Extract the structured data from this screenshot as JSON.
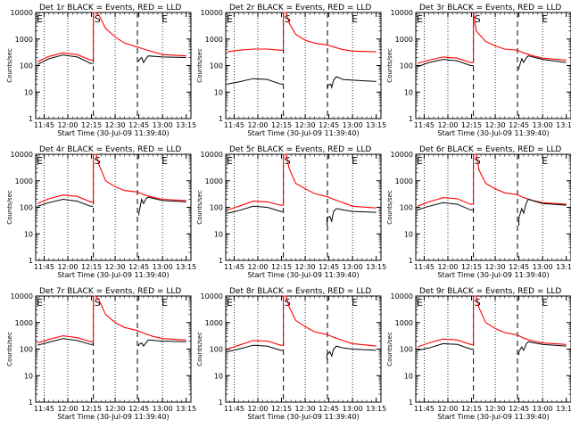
{
  "chart_data": {
    "type": "line",
    "x_ticks": [
      "11:45",
      "12:00",
      "12:15",
      "12:30",
      "12:45",
      "13:00",
      "13:15"
    ],
    "x_range_hours": [
      11.6611,
      13.3
    ],
    "xlabel": "Start Time (30-Jul-09 11:39:40)",
    "ylabel": "Counts/sec",
    "y_ticks": [
      "1",
      "10",
      "100",
      "1000",
      "10000"
    ],
    "ylim": [
      1,
      10000
    ],
    "y_scale": "log",
    "dotted_vlines_hours": [
      11.75,
      12.0,
      12.5,
      13.0
    ],
    "dashed_vlines_hours": [
      12.27,
      12.735
    ],
    "markers": [
      {
        "label": "E",
        "x_hours": 11.67
      },
      {
        "label": "S",
        "x_hours": 12.28
      },
      {
        "label": "E",
        "x_hours": 12.99
      }
    ],
    "colors": {
      "events": "#000000",
      "lld": "#ff0000"
    },
    "panels": [
      {
        "title": "Det 1r BLACK = Events, RED = LLD",
        "black": [
          [
            11.68,
            110
          ],
          [
            11.8,
            180
          ],
          [
            11.95,
            250
          ],
          [
            12.1,
            210
          ],
          [
            12.24,
            120
          ],
          [
            12.27,
            120
          ],
          [
            12.27,
            null
          ],
          [
            12.75,
            140
          ],
          [
            12.75,
            160
          ],
          [
            12.78,
            200
          ],
          [
            12.8,
            130
          ],
          [
            12.83,
            190
          ],
          [
            12.85,
            230
          ],
          [
            13.0,
            210
          ],
          [
            13.25,
            200
          ]
        ],
        "red": [
          [
            11.68,
            140
          ],
          [
            11.8,
            220
          ],
          [
            11.95,
            300
          ],
          [
            12.1,
            260
          ],
          [
            12.24,
            160
          ],
          [
            12.27,
            160
          ],
          [
            12.27,
            10000
          ],
          [
            12.3,
            10000
          ],
          [
            12.33,
            8000
          ],
          [
            12.4,
            2500
          ],
          [
            12.5,
            1200
          ],
          [
            12.6,
            700
          ],
          [
            12.735,
            500
          ],
          [
            12.8,
            420
          ],
          [
            12.9,
            330
          ],
          [
            13.0,
            260
          ],
          [
            13.25,
            230
          ]
        ]
      },
      {
        "title": "Det 2r BLACK = Events, RED = LLD",
        "black": [
          [
            11.68,
            20
          ],
          [
            11.8,
            24
          ],
          [
            11.95,
            32
          ],
          [
            12.1,
            30
          ],
          [
            12.24,
            20
          ],
          [
            12.27,
            20
          ],
          [
            12.27,
            null
          ],
          [
            12.74,
            14
          ],
          [
            12.74,
            18
          ],
          [
            12.77,
            20
          ],
          [
            12.78,
            15
          ],
          [
            12.8,
            28
          ],
          [
            12.83,
            38
          ],
          [
            12.9,
            30
          ],
          [
            13.0,
            28
          ],
          [
            13.25,
            25
          ]
        ],
        "red": [
          [
            11.68,
            330
          ],
          [
            11.8,
            380
          ],
          [
            11.95,
            420
          ],
          [
            12.1,
            420
          ],
          [
            12.24,
            380
          ],
          [
            12.27,
            380
          ],
          [
            12.27,
            10000
          ],
          [
            12.3,
            10000
          ],
          [
            12.33,
            4000
          ],
          [
            12.4,
            1500
          ],
          [
            12.5,
            900
          ],
          [
            12.6,
            700
          ],
          [
            12.735,
            600
          ],
          [
            12.8,
            500
          ],
          [
            12.9,
            400
          ],
          [
            13.0,
            350
          ],
          [
            13.25,
            330
          ]
        ]
      },
      {
        "title": "Det 3r BLACK = Events, RED = LLD",
        "black": [
          [
            11.68,
            90
          ],
          [
            11.8,
            130
          ],
          [
            11.95,
            170
          ],
          [
            12.1,
            150
          ],
          [
            12.24,
            100
          ],
          [
            12.27,
            100
          ],
          [
            12.27,
            null
          ],
          [
            12.75,
            70
          ],
          [
            12.75,
            80
          ],
          [
            12.78,
            180
          ],
          [
            12.8,
            130
          ],
          [
            12.83,
            200
          ],
          [
            12.85,
            230
          ],
          [
            13.0,
            170
          ],
          [
            13.25,
            130
          ]
        ],
        "red": [
          [
            11.68,
            120
          ],
          [
            11.8,
            160
          ],
          [
            11.95,
            210
          ],
          [
            12.1,
            190
          ],
          [
            12.24,
            130
          ],
          [
            12.27,
            130
          ],
          [
            12.27,
            10000
          ],
          [
            12.3,
            2000
          ],
          [
            12.4,
            800
          ],
          [
            12.5,
            550
          ],
          [
            12.6,
            420
          ],
          [
            12.735,
            380
          ],
          [
            12.8,
            300
          ],
          [
            12.9,
            230
          ],
          [
            13.0,
            190
          ],
          [
            13.25,
            160
          ]
        ]
      },
      {
        "title": "Det 4r BLACK = Events, RED = LLD",
        "black": [
          [
            11.68,
            110
          ],
          [
            11.8,
            150
          ],
          [
            11.95,
            200
          ],
          [
            12.1,
            170
          ],
          [
            12.24,
            110
          ],
          [
            12.27,
            110
          ],
          [
            12.27,
            null
          ],
          [
            12.75,
            50
          ],
          [
            12.75,
            60
          ],
          [
            12.78,
            200
          ],
          [
            12.8,
            140
          ],
          [
            12.83,
            220
          ],
          [
            12.85,
            240
          ],
          [
            13.0,
            180
          ],
          [
            13.25,
            160
          ]
        ],
        "red": [
          [
            11.68,
            140
          ],
          [
            11.8,
            210
          ],
          [
            11.95,
            290
          ],
          [
            12.1,
            260
          ],
          [
            12.24,
            160
          ],
          [
            12.27,
            160
          ],
          [
            12.27,
            10000
          ],
          [
            12.3,
            10000
          ],
          [
            12.33,
            4000
          ],
          [
            12.4,
            1000
          ],
          [
            12.5,
            600
          ],
          [
            12.6,
            430
          ],
          [
            12.735,
            380
          ],
          [
            12.8,
            300
          ],
          [
            12.9,
            240
          ],
          [
            13.0,
            200
          ],
          [
            13.25,
            180
          ]
        ]
      },
      {
        "title": "Det 5r BLACK = Events, RED = LLD",
        "black": [
          [
            11.68,
            60
          ],
          [
            11.8,
            75
          ],
          [
            11.95,
            110
          ],
          [
            12.1,
            100
          ],
          [
            12.24,
            70
          ],
          [
            12.27,
            70
          ],
          [
            12.27,
            null
          ],
          [
            12.73,
            20
          ],
          [
            12.73,
            40
          ],
          [
            12.76,
            45
          ],
          [
            12.78,
            30
          ],
          [
            12.8,
            70
          ],
          [
            12.83,
            90
          ],
          [
            12.9,
            80
          ],
          [
            13.0,
            70
          ],
          [
            13.25,
            65
          ]
        ],
        "red": [
          [
            11.68,
            80
          ],
          [
            11.8,
            110
          ],
          [
            11.95,
            170
          ],
          [
            12.1,
            160
          ],
          [
            12.24,
            120
          ],
          [
            12.27,
            120
          ],
          [
            12.27,
            10000
          ],
          [
            12.3,
            10000
          ],
          [
            12.33,
            3000
          ],
          [
            12.4,
            800
          ],
          [
            12.5,
            500
          ],
          [
            12.6,
            330
          ],
          [
            12.735,
            250
          ],
          [
            12.8,
            200
          ],
          [
            12.9,
            150
          ],
          [
            13.0,
            110
          ],
          [
            13.25,
            95
          ]
        ]
      },
      {
        "title": "Det 6r BLACK = Events, RED = LLD",
        "black": [
          [
            11.68,
            80
          ],
          [
            11.8,
            110
          ],
          [
            11.95,
            150
          ],
          [
            12.1,
            130
          ],
          [
            12.24,
            80
          ],
          [
            12.27,
            80
          ],
          [
            12.27,
            null
          ],
          [
            12.75,
            20
          ],
          [
            12.75,
            40
          ],
          [
            12.78,
            90
          ],
          [
            12.8,
            60
          ],
          [
            12.83,
            150
          ],
          [
            12.85,
            200
          ],
          [
            13.0,
            140
          ],
          [
            13.25,
            120
          ]
        ],
        "red": [
          [
            11.68,
            110
          ],
          [
            11.8,
            160
          ],
          [
            11.95,
            230
          ],
          [
            12.1,
            210
          ],
          [
            12.24,
            130
          ],
          [
            12.27,
            130
          ],
          [
            12.27,
            10000
          ],
          [
            12.3,
            10000
          ],
          [
            12.33,
            2500
          ],
          [
            12.4,
            800
          ],
          [
            12.5,
            500
          ],
          [
            12.6,
            350
          ],
          [
            12.735,
            300
          ],
          [
            12.8,
            230
          ],
          [
            12.9,
            180
          ],
          [
            13.0,
            150
          ],
          [
            13.25,
            130
          ]
        ]
      },
      {
        "title": "Det 7r BLACK = Events, RED = LLD",
        "black": [
          [
            11.68,
            140
          ],
          [
            11.8,
            180
          ],
          [
            11.95,
            250
          ],
          [
            12.1,
            210
          ],
          [
            12.24,
            150
          ],
          [
            12.27,
            150
          ],
          [
            12.27,
            null
          ],
          [
            12.75,
            130
          ],
          [
            12.75,
            150
          ],
          [
            12.78,
            170
          ],
          [
            12.8,
            130
          ],
          [
            12.83,
            180
          ],
          [
            12.85,
            220
          ],
          [
            13.0,
            200
          ],
          [
            13.25,
            190
          ]
        ],
        "red": [
          [
            11.68,
            170
          ],
          [
            11.8,
            230
          ],
          [
            11.95,
            320
          ],
          [
            12.1,
            270
          ],
          [
            12.24,
            190
          ],
          [
            12.27,
            190
          ],
          [
            12.27,
            10000
          ],
          [
            12.3,
            10000
          ],
          [
            12.33,
            7000
          ],
          [
            12.4,
            2000
          ],
          [
            12.5,
            1000
          ],
          [
            12.6,
            650
          ],
          [
            12.735,
            500
          ],
          [
            12.8,
            400
          ],
          [
            12.9,
            300
          ],
          [
            13.0,
            250
          ],
          [
            13.25,
            220
          ]
        ]
      },
      {
        "title": "Det 8r BLACK = Events, RED = LLD",
        "black": [
          [
            11.68,
            80
          ],
          [
            11.8,
            100
          ],
          [
            11.95,
            140
          ],
          [
            12.1,
            130
          ],
          [
            12.24,
            90
          ],
          [
            12.27,
            90
          ],
          [
            12.27,
            null
          ],
          [
            12.73,
            40
          ],
          [
            12.73,
            60
          ],
          [
            12.76,
            80
          ],
          [
            12.78,
            55
          ],
          [
            12.8,
            100
          ],
          [
            12.83,
            130
          ],
          [
            12.9,
            110
          ],
          [
            13.0,
            100
          ],
          [
            13.25,
            90
          ]
        ],
        "red": [
          [
            11.68,
            100
          ],
          [
            11.8,
            140
          ],
          [
            11.95,
            210
          ],
          [
            12.1,
            200
          ],
          [
            12.24,
            140
          ],
          [
            12.27,
            140
          ],
          [
            12.27,
            10000
          ],
          [
            12.3,
            10000
          ],
          [
            12.33,
            4000
          ],
          [
            12.4,
            1200
          ],
          [
            12.5,
            700
          ],
          [
            12.6,
            450
          ],
          [
            12.735,
            350
          ],
          [
            12.8,
            280
          ],
          [
            12.9,
            210
          ],
          [
            13.0,
            160
          ],
          [
            13.25,
            130
          ]
        ]
      },
      {
        "title": "Det 9r BLACK = Events, RED = LLD",
        "black": [
          [
            11.68,
            90
          ],
          [
            11.8,
            110
          ],
          [
            11.95,
            160
          ],
          [
            12.1,
            150
          ],
          [
            12.24,
            100
          ],
          [
            12.27,
            100
          ],
          [
            12.27,
            null
          ],
          [
            12.75,
            60
          ],
          [
            12.75,
            80
          ],
          [
            12.78,
            120
          ],
          [
            12.8,
            90
          ],
          [
            12.83,
            160
          ],
          [
            12.85,
            190
          ],
          [
            13.0,
            150
          ],
          [
            13.25,
            130
          ]
        ],
        "red": [
          [
            11.68,
            120
          ],
          [
            11.8,
            170
          ],
          [
            11.95,
            240
          ],
          [
            12.1,
            220
          ],
          [
            12.24,
            150
          ],
          [
            12.27,
            150
          ],
          [
            12.27,
            10000
          ],
          [
            12.3,
            10000
          ],
          [
            12.33,
            3500
          ],
          [
            12.4,
            1000
          ],
          [
            12.5,
            600
          ],
          [
            12.6,
            420
          ],
          [
            12.735,
            340
          ],
          [
            12.8,
            260
          ],
          [
            12.9,
            200
          ],
          [
            13.0,
            170
          ],
          [
            13.25,
            150
          ]
        ]
      }
    ]
  }
}
